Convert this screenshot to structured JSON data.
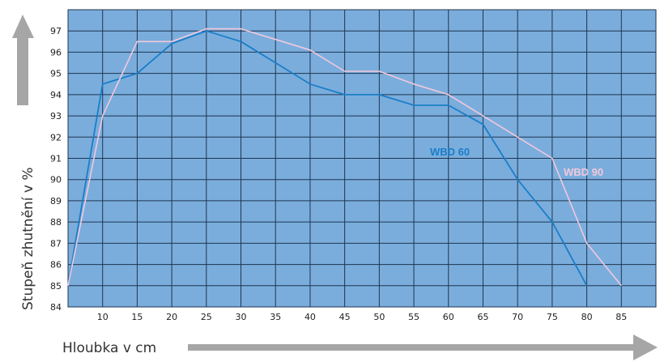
{
  "chart_data": {
    "type": "line",
    "xlabel": "Hloubka v cm",
    "ylabel": "Stupeň zhutnění v %",
    "x_ticks": [
      10,
      15,
      20,
      25,
      30,
      35,
      40,
      45,
      50,
      55,
      60,
      65,
      70,
      75,
      80,
      85
    ],
    "y_ticks": [
      84,
      85,
      86,
      87,
      88,
      89,
      90,
      91,
      92,
      93,
      94,
      95,
      96,
      97
    ],
    "xlim": [
      5,
      90
    ],
    "ylim": [
      84,
      98
    ],
    "grid": true,
    "series": [
      {
        "name": "WBD 60",
        "color": "#1a7ec8",
        "x": [
          5,
          10,
          15,
          20,
          25,
          30,
          35,
          40,
          45,
          50,
          55,
          60,
          65,
          70,
          75,
          80
        ],
        "y": [
          85,
          94.5,
          95,
          96.4,
          97,
          96.5,
          95.5,
          94.5,
          94,
          94,
          93.5,
          93.5,
          92.6,
          90,
          88,
          85
        ]
      },
      {
        "name": "WBD 90",
        "color": "#f2c8dc",
        "x": [
          5,
          10,
          15,
          20,
          25,
          30,
          35,
          40,
          45,
          50,
          55,
          60,
          65,
          70,
          75,
          80,
          85
        ],
        "y": [
          85,
          93,
          96.5,
          96.5,
          97.1,
          97.1,
          96.6,
          96.1,
          95.1,
          95.1,
          94.5,
          94,
          93,
          92,
          91,
          87,
          85
        ]
      }
    ]
  },
  "colors": {
    "plot_background": "#7aaddc",
    "grid": "#1f3550",
    "axis_arrow": "#a6a6a6"
  }
}
